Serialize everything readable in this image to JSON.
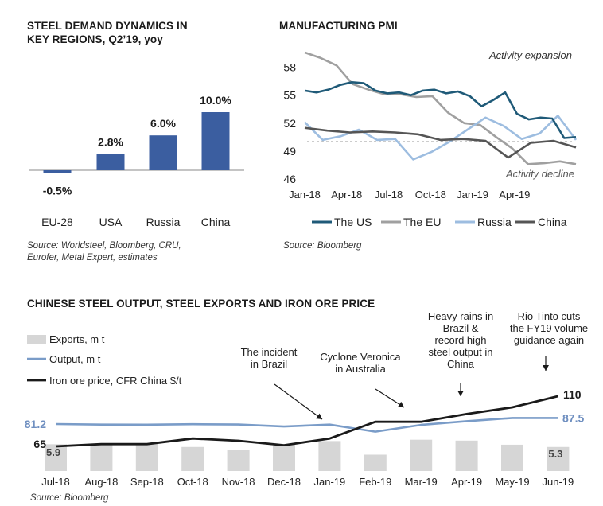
{
  "colors": {
    "bar_blue": "#3b5ea0",
    "us": "#1f5a78",
    "eu": "#a0a0a0",
    "russia": "#9dbde0",
    "china_line": "#555555",
    "exports_bar": "#d6d6d6",
    "output_line": "#7a9cc8",
    "iron_line": "#1a1a1a",
    "highlight_text": "#6f8fc0"
  },
  "panel1": {
    "title_line1": "STEEL DEMAND DYNAMICS IN",
    "title_line2": "KEY REGIONS, Q2’19, yoy",
    "source_line1": "Source: Worldsteel, Bloomberg, CRU,",
    "source_line2": "Eurofer, Metal Expert, estimates"
  },
  "panel2": {
    "title": "MANUFACTURING PMI",
    "annotation_top": "Activity expansion",
    "annotation_bottom": "Activity decline",
    "source": "Source: Bloomberg"
  },
  "panel3": {
    "title": "CHINESE STEEL OUTPUT, STEEL EXPORTS AND IRON ORE PRICE",
    "legend": [
      "Exports, m t",
      "Output, m t",
      "Iron ore price, CFR China $/t"
    ],
    "source": "Source: Bloomberg",
    "annotations": [
      {
        "lines": [
          "The incident",
          "in Brazil"
        ]
      },
      {
        "lines": [
          "Cyclone Veronica",
          "in Australia"
        ]
      },
      {
        "lines": [
          "Heavy rains in",
          "Brazil &",
          "record high",
          "steel output in",
          "China"
        ]
      },
      {
        "lines": [
          "Rio Tinto cuts",
          "the FY19 volume",
          "guidance again"
        ]
      }
    ],
    "labels": {
      "output_start": "81.2",
      "output_end": "87.5",
      "iron_start": "65",
      "iron_end": "110",
      "exports_start": "5.9",
      "exports_end": "5.3"
    }
  },
  "chart_data": [
    {
      "type": "bar",
      "categories": [
        "EU-28",
        "USA",
        "Russia",
        "China"
      ],
      "values": [
        -0.5,
        2.8,
        6.0,
        10.0
      ],
      "data_labels": [
        "-0.5%",
        "2.8%",
        "6.0%",
        "10.0%"
      ],
      "title": "STEEL DEMAND DYNAMICS IN KEY REGIONS, Q2’19, yoy",
      "xlabel": "",
      "ylabel": "",
      "ylim": [
        -1,
        10.5
      ]
    },
    {
      "type": "line",
      "title": "MANUFACTURING PMI",
      "x_ticks": [
        "Jan-18",
        "Apr-18",
        "Jul-18",
        "Oct-18",
        "Jan-19",
        "Apr-19"
      ],
      "y_ticks": [
        46,
        49,
        52,
        55,
        58
      ],
      "ylim": [
        45.5,
        60
      ],
      "reference_line": 50,
      "legend": "bottom",
      "series": [
        {
          "name": "The US",
          "values": [
            55.5,
            55.3,
            55.6,
            56.1,
            56.4,
            56.3,
            55.5,
            55.2,
            55.3,
            55.0,
            55.5,
            55.6,
            55.2,
            55.4,
            54.9,
            53.8,
            54.5,
            55.3,
            53.0,
            52.4,
            52.6,
            52.5,
            50.4,
            50.5
          ]
        },
        {
          "name": "The EU",
          "values": [
            59.6,
            59.0,
            58.2,
            56.2,
            55.6,
            55.1,
            55.1,
            54.8,
            54.9,
            53.1,
            52.0,
            51.8,
            50.5,
            49.3,
            47.6,
            47.7,
            47.9,
            47.6
          ]
        },
        {
          "name": "Russia",
          "values": [
            52.1,
            50.2,
            50.6,
            51.3,
            50.2,
            50.3,
            48.1,
            48.9,
            50.0,
            51.3,
            52.6,
            51.7,
            50.3,
            50.9,
            52.8,
            50.2
          ]
        },
        {
          "name": "China",
          "values": [
            51.5,
            51.2,
            51.0,
            51.1,
            51.0,
            50.8,
            50.2,
            50.3,
            50.1,
            48.3,
            49.9,
            50.1,
            49.4
          ]
        }
      ]
    },
    {
      "type": "bar",
      "title": "CHINESE STEEL OUTPUT, STEEL EXPORTS AND IRON ORE PRICE",
      "categories": [
        "Jul-18",
        "Aug-18",
        "Sep-18",
        "Oct-18",
        "Nov-18",
        "Dec-18",
        "Jan-19",
        "Feb-19",
        "Mar-19",
        "Apr-19",
        "May-19",
        "Jun-19"
      ],
      "series": [
        {
          "name": "Exports, m t",
          "type": "bar",
          "values": [
            5.9,
            6.0,
            6.1,
            5.3,
            4.6,
            5.8,
            6.6,
            3.6,
            6.9,
            6.7,
            5.8,
            5.3
          ]
        },
        {
          "name": "Output, m t",
          "type": "line",
          "values": [
            81.2,
            80.6,
            80.5,
            81.0,
            80.7,
            78.6,
            80.6,
            73.2,
            80.3,
            84.2,
            87.5,
            87.5
          ]
        },
        {
          "name": "Iron ore price, CFR China $/t",
          "type": "line",
          "values": [
            65,
            67,
            67,
            72,
            70,
            66,
            72,
            87,
            87,
            94,
            100,
            110
          ]
        }
      ],
      "legend": "top-left"
    }
  ]
}
